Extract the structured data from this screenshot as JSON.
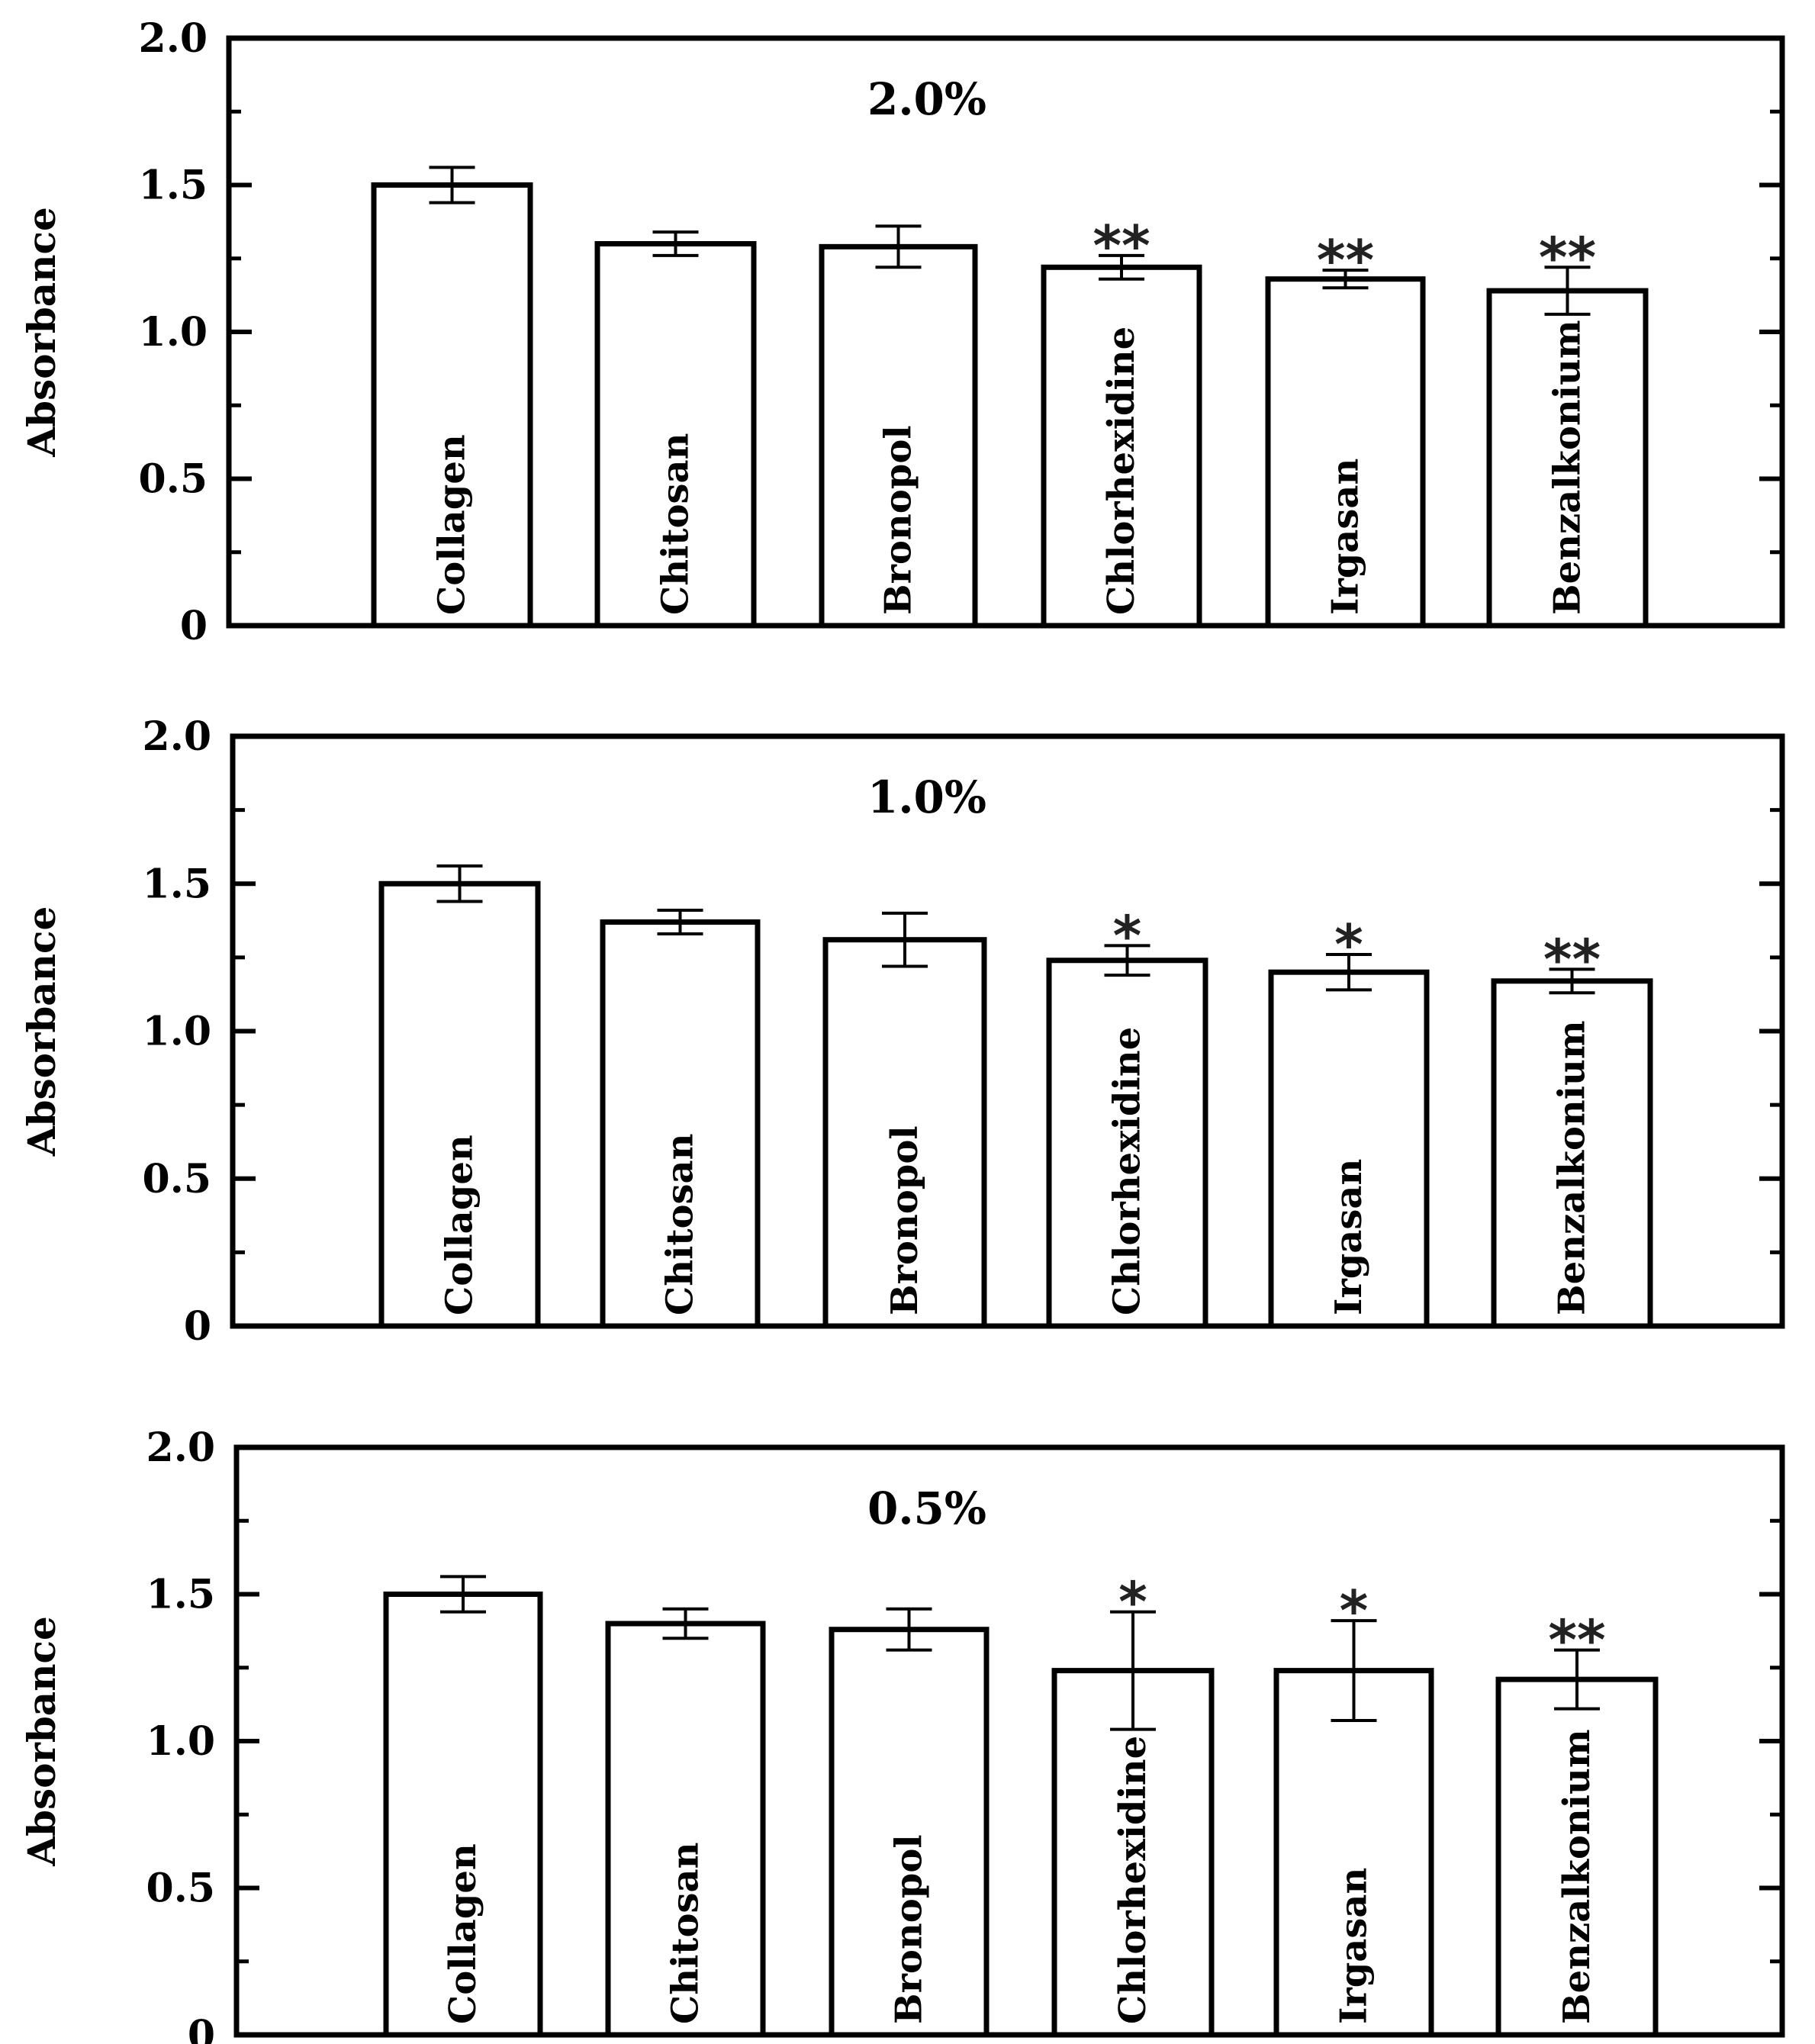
{
  "chart_data": [
    {
      "type": "bar",
      "title": "2.0%",
      "ylabel": "Absorbance",
      "xlabel": "",
      "ylim": [
        0,
        2.0
      ],
      "yticks": [
        "0",
        "0.5",
        "1.0",
        "1.5",
        "2.0"
      ],
      "ytick_values": [
        0,
        0.5,
        1.0,
        1.5,
        2.0
      ],
      "categories": [
        "Collagen",
        "Chitosan",
        "Bronopol",
        "Chlorhexidine",
        "Irgasan",
        "Benzalkonium"
      ],
      "values": [
        1.5,
        1.3,
        1.29,
        1.22,
        1.18,
        1.14
      ],
      "errors": [
        0.06,
        0.04,
        0.07,
        0.04,
        0.03,
        0.08
      ],
      "significance": [
        "",
        "",
        "",
        "**",
        "**",
        "**"
      ]
    },
    {
      "type": "bar",
      "title": "1.0%",
      "ylabel": "Absorbance",
      "xlabel": "",
      "ylim": [
        0,
        2.0
      ],
      "yticks": [
        "0",
        "0.5",
        "1.0",
        "1.5",
        "2.0"
      ],
      "ytick_values": [
        0,
        0.5,
        1.0,
        1.5,
        2.0
      ],
      "categories": [
        "Collagen",
        "Chitosan",
        "Bronopol",
        "Chlorhexidine",
        "Irgasan",
        "Benzalkonium"
      ],
      "values": [
        1.5,
        1.37,
        1.31,
        1.24,
        1.2,
        1.17
      ],
      "errors": [
        0.06,
        0.04,
        0.09,
        0.05,
        0.06,
        0.04
      ],
      "significance": [
        "",
        "",
        "",
        "*",
        "*",
        "**"
      ]
    },
    {
      "type": "bar",
      "title": "0.5%",
      "ylabel": "Absorbance",
      "xlabel": "",
      "ylim": [
        0,
        2.0
      ],
      "yticks": [
        "0",
        "0.5",
        "1.0",
        "1.5",
        "2.0"
      ],
      "ytick_values": [
        0,
        0.5,
        1.0,
        1.5,
        2.0
      ],
      "categories": [
        "Collagen",
        "Chitosan",
        "Bronopol",
        "Chlorhexidine",
        "Irgasan",
        "Benzalkonium"
      ],
      "values": [
        1.5,
        1.4,
        1.38,
        1.24,
        1.24,
        1.21
      ],
      "errors": [
        0.06,
        0.05,
        0.07,
        0.2,
        0.17,
        0.1
      ],
      "significance": [
        "",
        "",
        "",
        "*",
        "*",
        "**"
      ]
    }
  ]
}
